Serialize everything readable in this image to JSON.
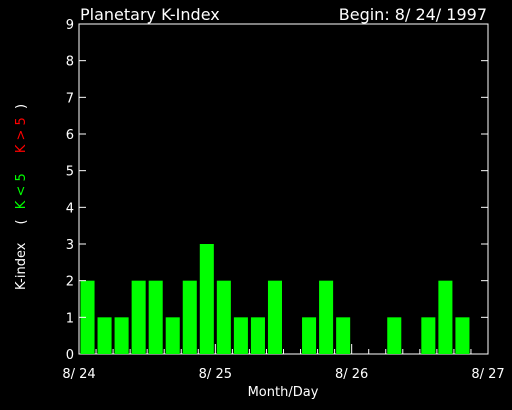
{
  "chart_data": {
    "type": "bar",
    "title": "Planetary K-Index",
    "begin_label": "Begin: 8/ 24/ 1997",
    "xlabel": "Month/Day",
    "ylabel": {
      "prefix": "K-index",
      "open_paren": "(",
      "low_part": "K < 5",
      "high_part": "K > 5",
      "close_paren": ")"
    },
    "ylim": [
      0,
      9
    ],
    "yticks": [
      "0",
      "1",
      "2",
      "3",
      "4",
      "5",
      "6",
      "7",
      "8",
      "9"
    ],
    "xlim_days": [
      0,
      3
    ],
    "xticks": [
      {
        "label": "8/ 24",
        "day": 0
      },
      {
        "label": "8/ 25",
        "day": 1
      },
      {
        "label": "8/ 26",
        "day": 2
      },
      {
        "label": "8/ 27",
        "day": 3
      }
    ],
    "interval_hours": 3,
    "values": [
      2,
      1,
      1,
      2,
      2,
      1,
      2,
      3,
      2,
      1,
      1,
      2,
      0,
      1,
      2,
      1,
      0,
      0,
      1,
      0,
      1,
      2,
      1,
      0
    ],
    "colors": {
      "background": "#000000",
      "axes": "#ffffff",
      "low_bar": "#00ff00",
      "high_bar": "#ff0000",
      "low_text": "#00ff00",
      "high_text": "#ff0000"
    },
    "threshold": 5,
    "grid": false
  }
}
